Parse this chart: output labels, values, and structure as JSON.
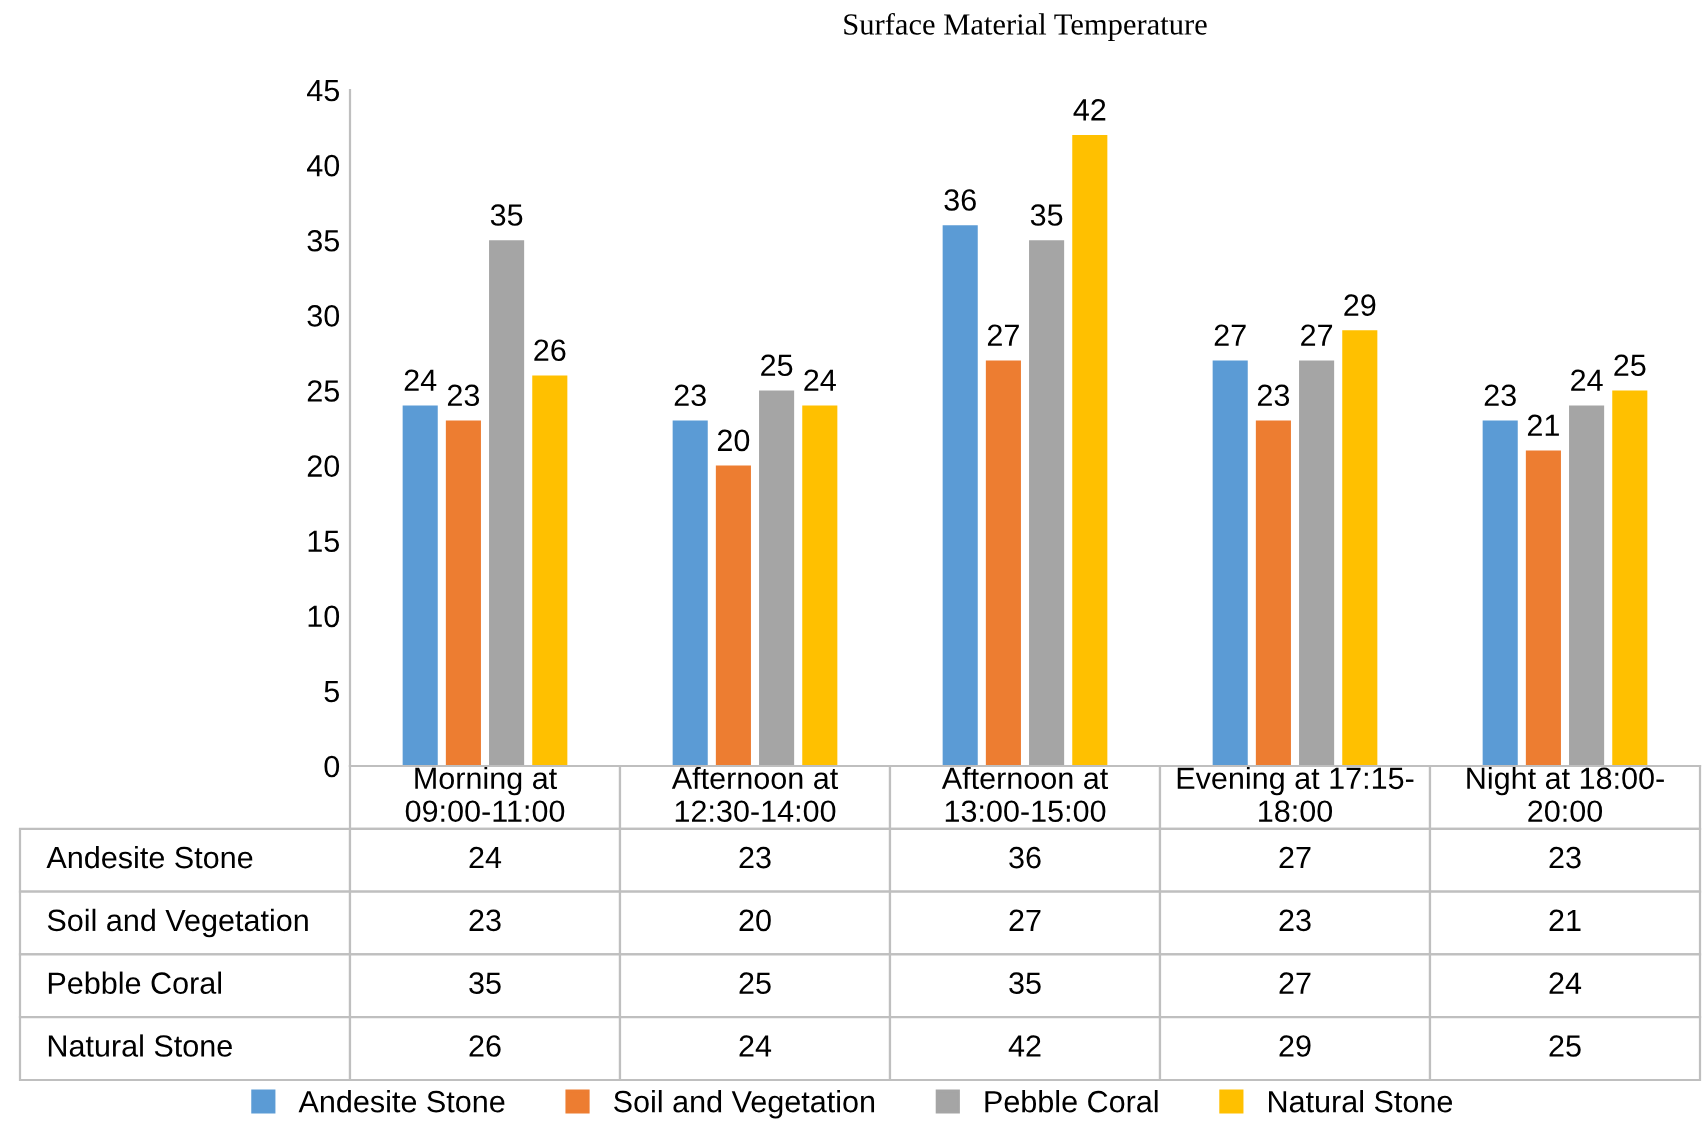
{
  "chart_data": {
    "type": "bar",
    "title": "Surface Material Temperature",
    "categories": [
      "Morning at\n09:00-11:00",
      "Afternoon at\n12:30-14:00",
      "Afternoon at\n13:00-15:00",
      "Evening at 17:15-\n18:00",
      "Night at 18:00-\n20:00"
    ],
    "series": [
      {
        "name": "Andesite Stone",
        "color": "#5b9bd5",
        "values": [
          24,
          23,
          36,
          27,
          23
        ],
        "value_labels": [
          "24",
          "23",
          "36",
          "27",
          "23"
        ]
      },
      {
        "name": "Soil and Vegetation",
        "color": "#ed7d31",
        "values": [
          23,
          20,
          27,
          23,
          21
        ],
        "value_labels": [
          "23",
          "20",
          "27",
          "23",
          "21"
        ]
      },
      {
        "name": "Pebble Coral",
        "color": "#a5a5a5",
        "values": [
          35,
          25,
          35,
          27,
          24
        ],
        "value_labels": [
          "35",
          "25",
          "35",
          "27",
          "24"
        ]
      },
      {
        "name": "Natural Stone",
        "color": "#ffc000",
        "values": [
          26,
          24,
          42,
          29,
          25
        ],
        "value_labels": [
          "26",
          "24",
          "42",
          "29",
          "25"
        ]
      }
    ],
    "ylim": [
      0,
      45
    ],
    "yticks": [
      0,
      5,
      10,
      15,
      20,
      25,
      30,
      35,
      40,
      45
    ],
    "grid": false,
    "legend": "bottom",
    "annotations": [
      "24",
      "23",
      "36",
      "27",
      "23",
      "23",
      "20",
      "27",
      "23",
      "21",
      "35",
      "25",
      "35",
      "27",
      "24",
      "26",
      "24",
      "42",
      "29",
      "25"
    ]
  }
}
